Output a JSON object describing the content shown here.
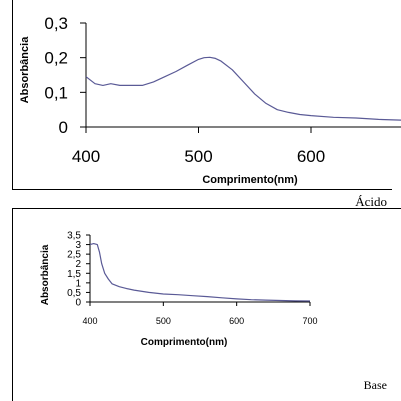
{
  "chart_data": [
    {
      "type": "line",
      "caption": "Ácido",
      "xlabel": "Comprimento(nm)",
      "ylabel": "Absorbância",
      "xlim": [
        400,
        680
      ],
      "ylim": [
        0,
        0.3
      ],
      "xticks": [
        "400",
        "500",
        "600"
      ],
      "xtick_values": [
        400,
        500,
        600
      ],
      "yticks": [
        "0",
        "0,1",
        "0,2",
        "0,3"
      ],
      "ytick_values": [
        0,
        0.1,
        0.2,
        0.3
      ],
      "grid": false,
      "color": "#5a5a96",
      "series": [
        {
          "x": [
            400,
            408,
            415,
            422,
            430,
            440,
            450,
            460,
            470,
            480,
            490,
            500,
            505,
            510,
            515,
            520,
            530,
            540,
            550,
            560,
            570,
            580,
            590,
            600,
            620,
            640,
            660,
            680
          ],
          "y": [
            0.145,
            0.125,
            0.12,
            0.125,
            0.12,
            0.12,
            0.12,
            0.13,
            0.145,
            0.16,
            0.178,
            0.195,
            0.2,
            0.201,
            0.198,
            0.19,
            0.165,
            0.13,
            0.095,
            0.068,
            0.05,
            0.042,
            0.036,
            0.033,
            0.028,
            0.026,
            0.022,
            0.02
          ]
        }
      ]
    },
    {
      "type": "line",
      "caption": "Base",
      "xlabel": "Comprimento(nm)",
      "ylabel": "Absorbância",
      "xlim": [
        400,
        700
      ],
      "ylim": [
        0,
        3.5
      ],
      "xticks": [
        "400",
        "500",
        "600",
        "700"
      ],
      "xtick_values": [
        400,
        500,
        600,
        700
      ],
      "yticks": [
        "0",
        "0,5",
        "1",
        "1,5",
        "2",
        "2,5",
        "3",
        "3,5"
      ],
      "ytick_values": [
        0,
        0.5,
        1,
        1.5,
        2,
        2.5,
        3,
        3.5
      ],
      "grid": false,
      "color": "#5a5a96",
      "series": [
        {
          "x": [
            400,
            405,
            410,
            413,
            416,
            420,
            425,
            430,
            440,
            450,
            460,
            480,
            500,
            520,
            540,
            560,
            580,
            600,
            620,
            640,
            660,
            680,
            700
          ],
          "y": [
            3.0,
            3.05,
            3.0,
            2.6,
            2.0,
            1.5,
            1.2,
            0.95,
            0.8,
            0.7,
            0.62,
            0.5,
            0.42,
            0.38,
            0.33,
            0.28,
            0.22,
            0.16,
            0.12,
            0.1,
            0.08,
            0.06,
            0.05
          ]
        }
      ]
    }
  ]
}
